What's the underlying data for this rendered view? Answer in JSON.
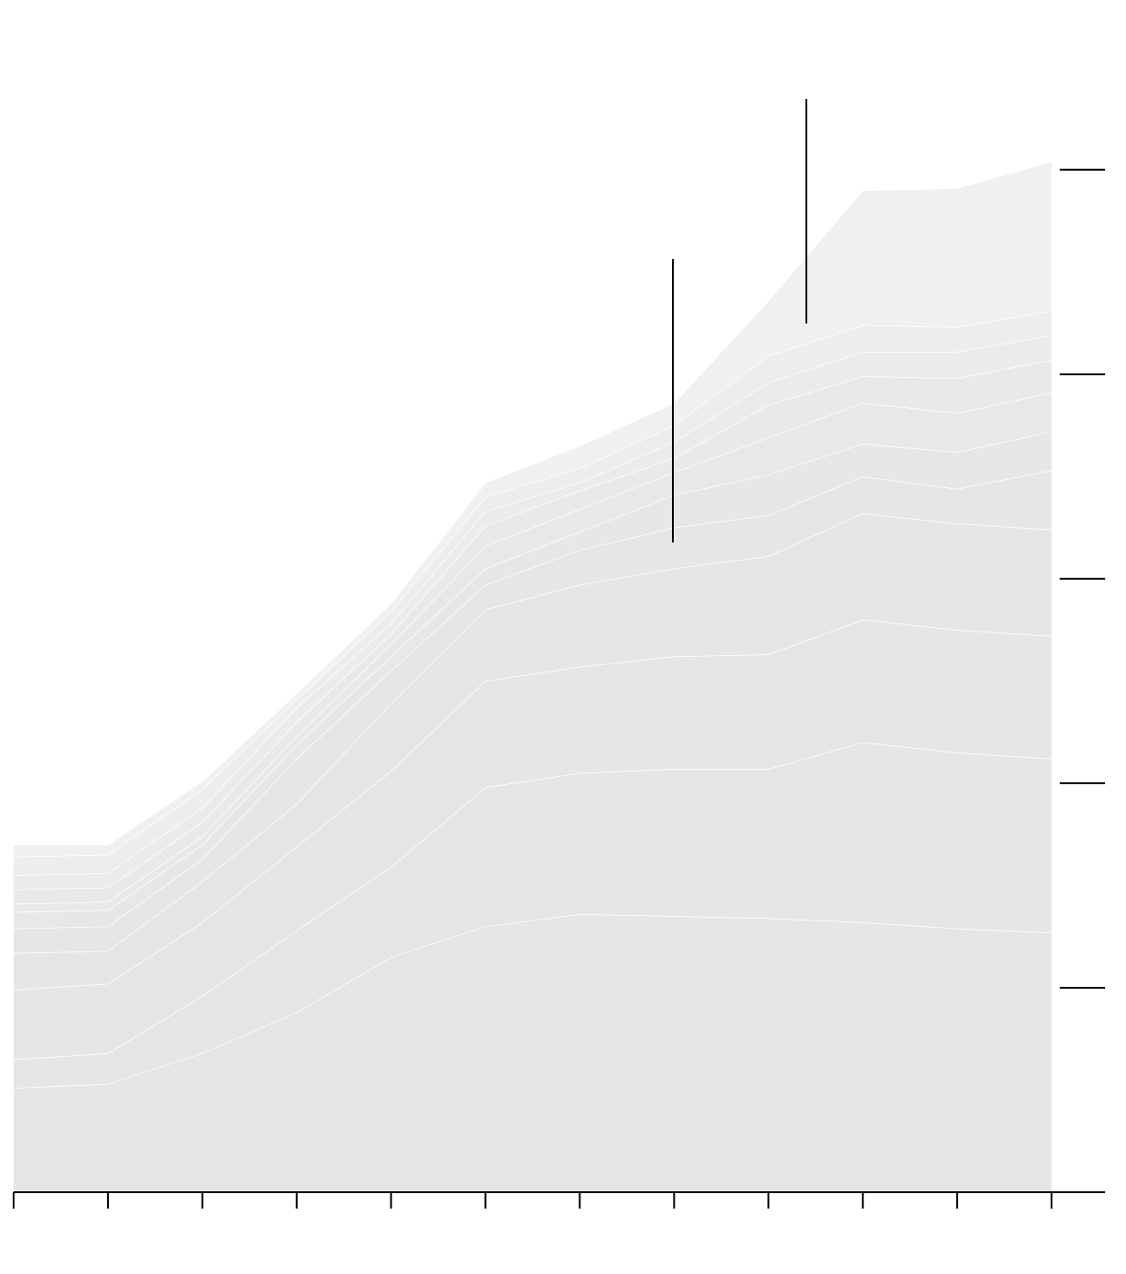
{
  "chart_data": {
    "type": "stacked-area",
    "categories": [
      null,
      null,
      null,
      null,
      null,
      null,
      null,
      null,
      null,
      null,
      null,
      null
    ],
    "series": [
      {
        "color": "#e5e5e5",
        "values": [
          0.51,
          0.53,
          0.68,
          0.88,
          1.15,
          1.3,
          1.36,
          1.35,
          1.34,
          1.32,
          1.29,
          1.27
        ]
      },
      {
        "color": "#e5e5e5",
        "values": [
          0.14,
          0.15,
          0.28,
          0.4,
          0.44,
          0.68,
          0.69,
          0.72,
          0.73,
          0.88,
          0.86,
          0.85
        ]
      },
      {
        "color": "#e5e5e5",
        "values": [
          0.34,
          0.34,
          0.36,
          0.41,
          0.47,
          0.52,
          0.52,
          0.55,
          0.56,
          0.6,
          0.6,
          0.6
        ]
      },
      {
        "color": "#e5e5e5",
        "values": [
          0.18,
          0.16,
          0.2,
          0.21,
          0.33,
          0.35,
          0.4,
          0.43,
          0.48,
          0.52,
          0.52,
          0.52
        ]
      },
      {
        "color": "#e6e6e6",
        "values": [
          0.12,
          0.12,
          0.11,
          0.22,
          0.16,
          0.12,
          0.17,
          0.2,
          0.2,
          0.18,
          0.17,
          0.29
        ]
      },
      {
        "color": "#e7e7e7",
        "values": [
          0.08,
          0.08,
          0.07,
          0.07,
          0.07,
          0.08,
          0.09,
          0.16,
          0.2,
          0.16,
          0.18,
          0.19
        ]
      },
      {
        "color": "#e8e8e8",
        "values": [
          0.04,
          0.04,
          0.04,
          0.04,
          0.06,
          0.11,
          0.11,
          0.11,
          0.18,
          0.2,
          0.19,
          0.19
        ]
      },
      {
        "color": "#e9e9e9",
        "values": [
          0.07,
          0.07,
          0.07,
          0.07,
          0.05,
          0.1,
          0.09,
          0.07,
          0.16,
          0.13,
          0.17,
          0.16
        ]
      },
      {
        "color": "#ebebeb",
        "values": [
          0.07,
          0.07,
          0.07,
          0.07,
          0.05,
          0.07,
          0.04,
          0.08,
          0.11,
          0.12,
          0.13,
          0.12
        ]
      },
      {
        "color": "#ededed",
        "values": [
          0.09,
          0.09,
          0.09,
          0.04,
          0.06,
          0.07,
          0.07,
          0.08,
          0.13,
          0.13,
          0.12,
          0.12
        ]
      },
      {
        "color": "#f0f0f0",
        "values": [
          0.06,
          0.05,
          0.04,
          0.03,
          0.04,
          0.07,
          0.11,
          0.11,
          0.27,
          0.66,
          0.68,
          0.73
        ]
      }
    ],
    "ylim": [
      0,
      5.35
    ],
    "yticks": [
      1,
      2,
      3,
      4,
      5
    ]
  }
}
